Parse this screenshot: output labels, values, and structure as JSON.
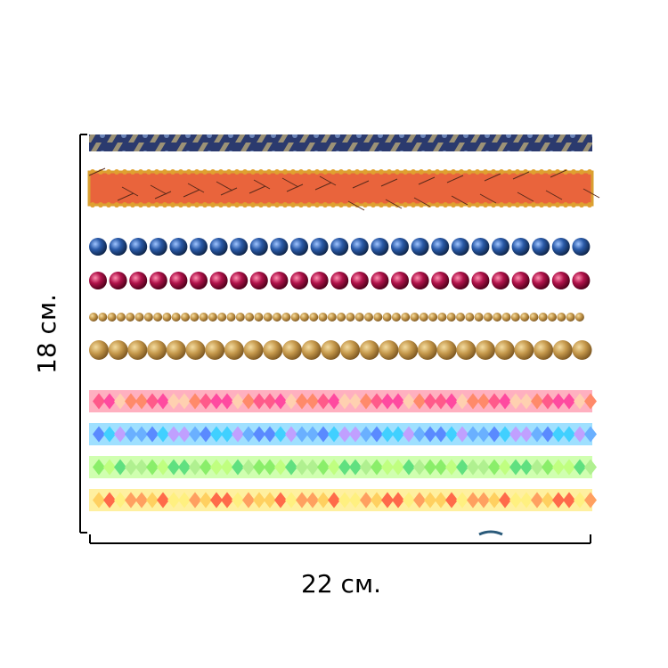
{
  "dimensions": {
    "height_label": "18 см.",
    "width_label": "22 см."
  }
}
